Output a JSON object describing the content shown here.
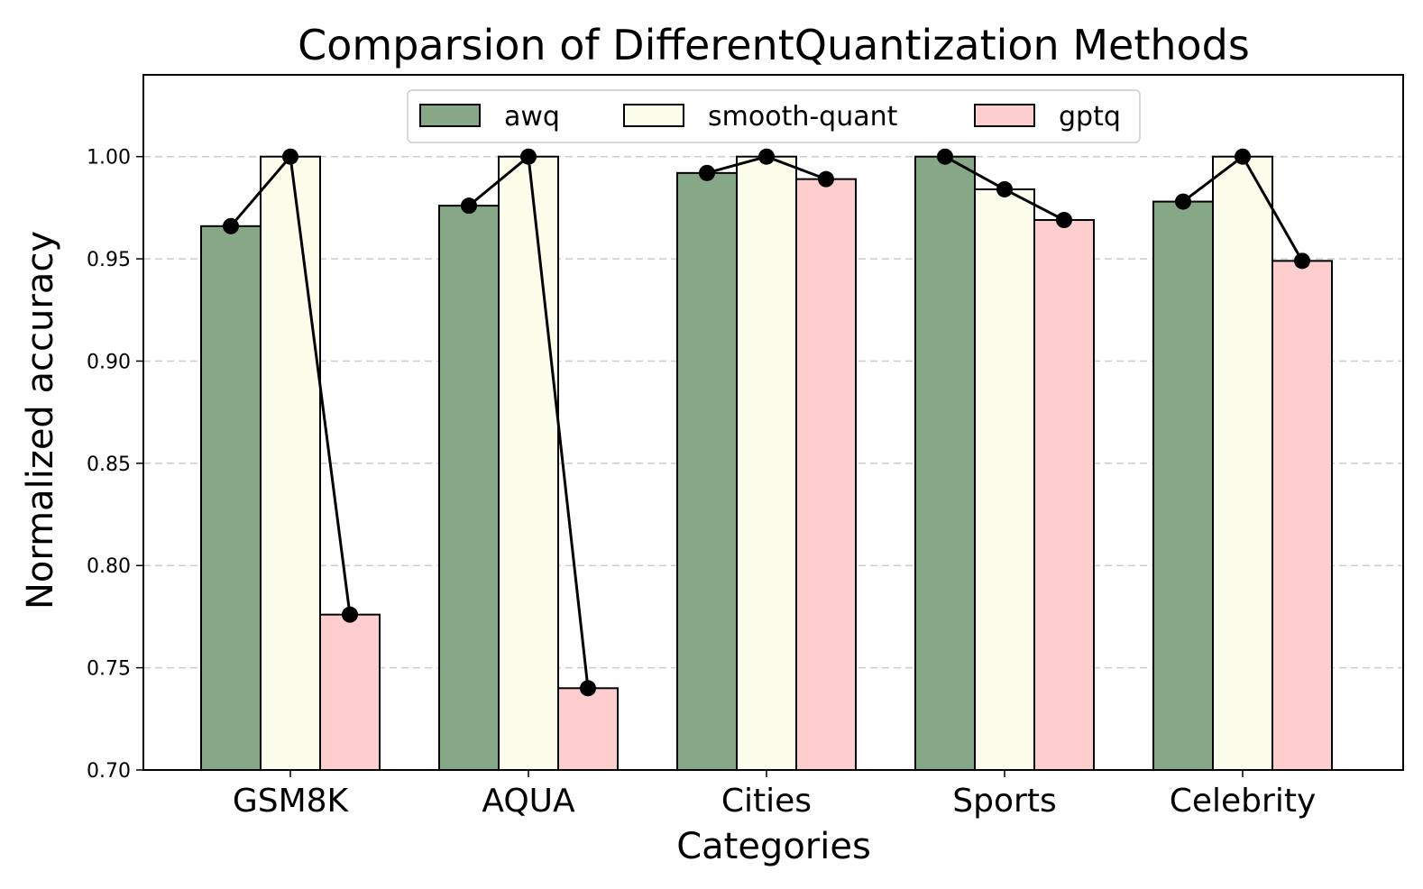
{
  "chart_data": {
    "type": "bar",
    "title": "Comparsion of DifferentQuantization Methods",
    "xlabel": "Categories",
    "ylabel": "Normalized accuracy",
    "categories": [
      "GSM8K",
      "AQUA",
      "Cities",
      "Sports",
      "Celebrity"
    ],
    "series": [
      {
        "name": "awq",
        "color": "#86a886",
        "values": [
          0.966,
          0.976,
          0.992,
          1.0,
          0.978
        ]
      },
      {
        "name": "smooth-quant",
        "color": "#fdfdec",
        "values": [
          1.0,
          1.0,
          1.0,
          0.984,
          1.0
        ]
      },
      {
        "name": "gptq",
        "color": "#fecdcd",
        "values": [
          0.776,
          0.74,
          0.989,
          0.969,
          0.949
        ]
      }
    ],
    "ylim": [
      0.7,
      1.04
    ],
    "yticks": [
      "0.70",
      "0.75",
      "0.80",
      "0.85",
      "0.90",
      "0.95",
      "1.00"
    ],
    "grid": "horizontal dashed",
    "legend_position": "top-center",
    "overlay": "connected black dots at top of each bar within a category"
  }
}
